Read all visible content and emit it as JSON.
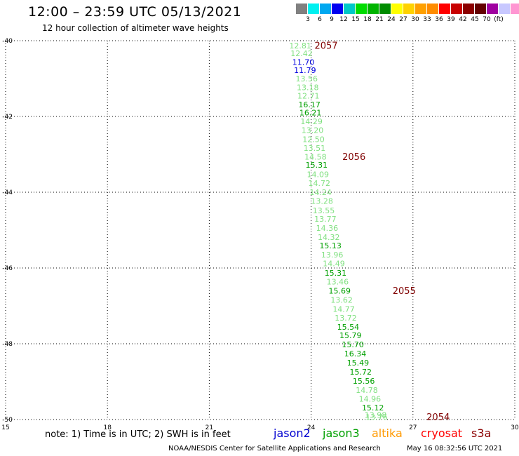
{
  "header": {
    "title": "12:00 – 23:59 UTC 05/13/2021",
    "subtitle": "12 hour collection of altimeter wave heights"
  },
  "colorbar": {
    "colors": [
      "#808080",
      "#00f0f0",
      "#00a8f0",
      "#0000f0",
      "#00c8c8",
      "#00dc00",
      "#00b400",
      "#008c00",
      "#ffff00",
      "#ffd200",
      "#ffa000",
      "#ff8c00",
      "#ff0000",
      "#c80000",
      "#8c0000",
      "#640000",
      "#a000a0",
      "#c8c8ff",
      "#ff96d2",
      "#000000"
    ],
    "labels": [
      "3",
      "6",
      "9",
      "12",
      "15",
      "18",
      "21",
      "24",
      "27",
      "30",
      "33",
      "36",
      "39",
      "42",
      "45",
      "70",
      "(ft)"
    ]
  },
  "note": "note: 1) Time is in UTC; 2) SWH is in feet",
  "missions": [
    {
      "name": "jason2",
      "color": "#0000d0"
    },
    {
      "name": "jason3",
      "color": "#00a000"
    },
    {
      "name": "altika",
      "color": "#ff9900"
    },
    {
      "name": "cryosat",
      "color": "#ff0000"
    },
    {
      "name": "s3a",
      "color": "#8b0000"
    }
  ],
  "footer": {
    "source": "NOAA/NESDIS Center for Satellite Applications and Research",
    "generated": "May 16 08:32:56 UTC 2021"
  },
  "chart_data": {
    "type": "scatter",
    "xlim": [
      15,
      30
    ],
    "ylim": [
      -50,
      -40
    ],
    "x_ticks": [
      "15",
      "18",
      "21",
      "24",
      "27",
      "30"
    ],
    "y_ticks": [
      "-40",
      "-42",
      "-44",
      "-46",
      "-48",
      "-50"
    ],
    "grid": true,
    "series": [
      {
        "name": "s3a",
        "points": [
          {
            "x": 23.68,
            "y": -40.15,
            "label": "12.81",
            "color": "#80e080"
          },
          {
            "x": 23.72,
            "y": -40.35,
            "label": "12.42",
            "color": "#80e080"
          },
          {
            "x": 23.77,
            "y": -40.58,
            "label": "11.70",
            "color": "#0000e0"
          },
          {
            "x": 23.82,
            "y": -40.8,
            "label": "11.79",
            "color": "#0000e0"
          },
          {
            "x": 23.87,
            "y": -41.02,
            "label": "13.56",
            "color": "#80e080"
          },
          {
            "x": 23.9,
            "y": -41.25,
            "label": "13.18",
            "color": "#80e080"
          },
          {
            "x": 23.92,
            "y": -41.47,
            "label": "12.71",
            "color": "#80e080"
          },
          {
            "x": 23.95,
            "y": -41.7,
            "label": "16.17",
            "color": "#00a000"
          },
          {
            "x": 23.98,
            "y": -41.92,
            "label": "16.21",
            "color": "#00a000"
          },
          {
            "x": 24.01,
            "y": -42.15,
            "label": "14.29",
            "color": "#80e080"
          },
          {
            "x": 24.04,
            "y": -42.38,
            "label": "13.20",
            "color": "#80e080"
          },
          {
            "x": 24.07,
            "y": -42.62,
            "label": "12.50",
            "color": "#80e080"
          },
          {
            "x": 24.1,
            "y": -42.85,
            "label": "13.51",
            "color": "#80e080"
          },
          {
            "x": 24.13,
            "y": -43.08,
            "label": "14.58",
            "color": "#80e080"
          },
          {
            "x": 24.16,
            "y": -43.3,
            "label": "15.31",
            "color": "#00a000"
          },
          {
            "x": 24.2,
            "y": -43.55,
            "label": "14.09",
            "color": "#80e080"
          },
          {
            "x": 24.24,
            "y": -43.78,
            "label": "14.72",
            "color": "#80e080"
          },
          {
            "x": 24.28,
            "y": -44.02,
            "label": "14.24",
            "color": "#80e080"
          },
          {
            "x": 24.32,
            "y": -44.25,
            "label": "13.28",
            "color": "#80e080"
          },
          {
            "x": 24.37,
            "y": -44.5,
            "label": "13.55",
            "color": "#80e080"
          },
          {
            "x": 24.42,
            "y": -44.72,
            "label": "13.77",
            "color": "#80e080"
          },
          {
            "x": 24.47,
            "y": -44.96,
            "label": "14.36",
            "color": "#80e080"
          },
          {
            "x": 24.52,
            "y": -45.2,
            "label": "14.32",
            "color": "#80e080"
          },
          {
            "x": 24.57,
            "y": -45.43,
            "label": "15.13",
            "color": "#00a000"
          },
          {
            "x": 24.62,
            "y": -45.67,
            "label": "13.96",
            "color": "#80e080"
          },
          {
            "x": 24.67,
            "y": -45.9,
            "label": "14.49",
            "color": "#80e080"
          },
          {
            "x": 24.72,
            "y": -46.15,
            "label": "15.31",
            "color": "#00a000"
          },
          {
            "x": 24.78,
            "y": -46.38,
            "label": "13.46",
            "color": "#80e080"
          },
          {
            "x": 24.84,
            "y": -46.62,
            "label": "15.69",
            "color": "#00a000"
          },
          {
            "x": 24.9,
            "y": -46.86,
            "label": "13.62",
            "color": "#80e080"
          },
          {
            "x": 24.96,
            "y": -47.1,
            "label": "14.77",
            "color": "#80e080"
          },
          {
            "x": 25.02,
            "y": -47.33,
            "label": "13.72",
            "color": "#80e080"
          },
          {
            "x": 25.09,
            "y": -47.57,
            "label": "15.54",
            "color": "#00a000"
          },
          {
            "x": 25.16,
            "y": -47.8,
            "label": "15.79",
            "color": "#00a000"
          },
          {
            "x": 25.23,
            "y": -48.04,
            "label": "15.70",
            "color": "#00a000"
          },
          {
            "x": 25.3,
            "y": -48.28,
            "label": "16.34",
            "color": "#00a000"
          },
          {
            "x": 25.38,
            "y": -48.52,
            "label": "15.49",
            "color": "#00a000"
          },
          {
            "x": 25.46,
            "y": -48.76,
            "label": "15.72",
            "color": "#00a000"
          },
          {
            "x": 25.55,
            "y": -49.0,
            "label": "15.56",
            "color": "#00a000"
          },
          {
            "x": 25.64,
            "y": -49.24,
            "label": "14.78",
            "color": "#80e080"
          },
          {
            "x": 25.73,
            "y": -49.47,
            "label": "14.96",
            "color": "#80e080"
          },
          {
            "x": 25.82,
            "y": -49.7,
            "label": "15.12",
            "color": "#00a000"
          },
          {
            "x": 25.9,
            "y": -49.9,
            "label": "13.98",
            "color": "#80e080"
          },
          {
            "x": 25.93,
            "y": -49.95,
            "label": "13.76",
            "color": "#80e080"
          }
        ]
      }
    ],
    "annotations": [
      {
        "text": "2057",
        "x": 24.1,
        "y": -40.15,
        "color": "#800000"
      },
      {
        "text": "2056",
        "x": 24.92,
        "y": -43.08,
        "color": "#800000"
      },
      {
        "text": "2055",
        "x": 26.4,
        "y": -46.62,
        "color": "#800000"
      },
      {
        "text": "2054",
        "x": 27.4,
        "y": -49.95,
        "color": "#800000"
      }
    ]
  }
}
